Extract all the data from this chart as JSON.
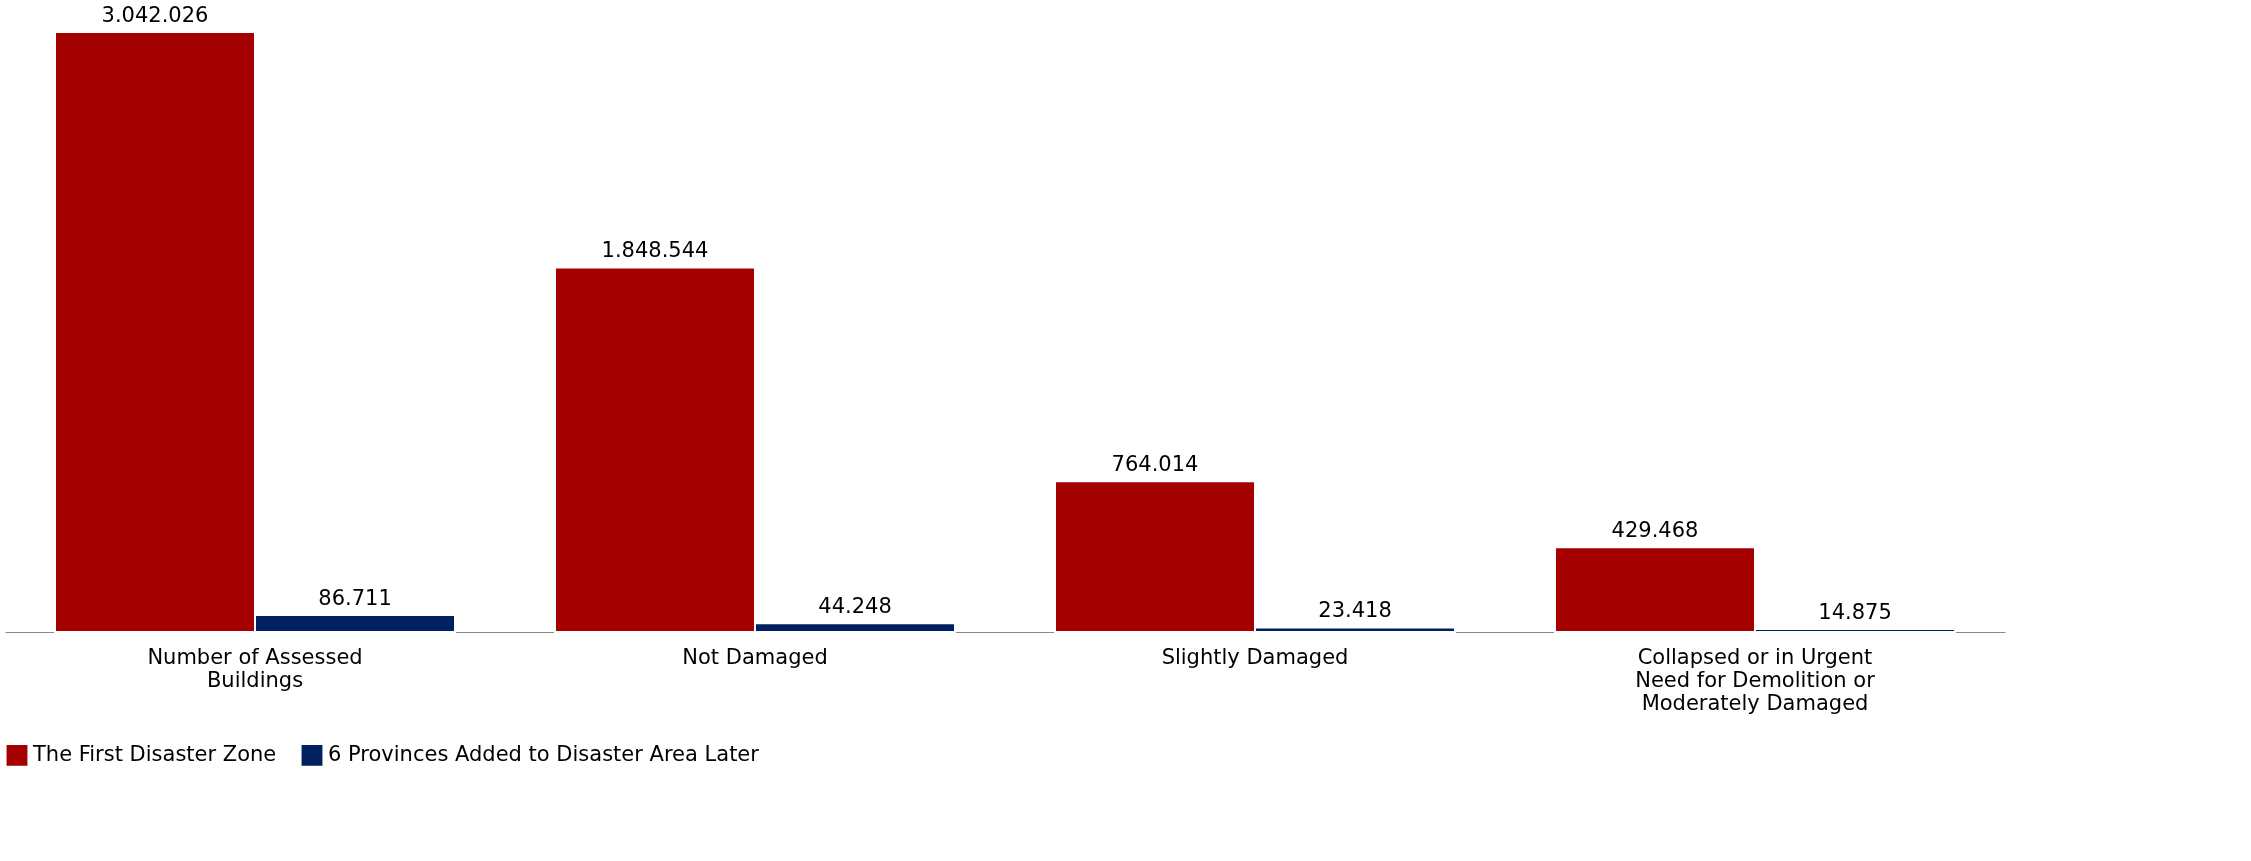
{
  "chart_data": {
    "type": "bar",
    "categories": [
      "Number of Assessed Buildings",
      "Not Damaged",
      "Slightly Damaged",
      "Collapsed or in Urgent Need for Demolition or Moderately Damaged"
    ],
    "tick_labels": "x",
    "legend": "bottom",
    "series": [
      {
        "name": "The First Disaster Zone",
        "color": "#a50000",
        "values": [
          3042026,
          1848544,
          764014,
          429468
        ],
        "value_labels": [
          "3.042.026",
          "1.848.544",
          "764.014",
          "429.468"
        ]
      },
      {
        "name": "6 Provinces Added to Disaster Area Later",
        "color": "#002060",
        "values": [
          86711,
          44248,
          23418,
          14875
        ],
        "value_labels": [
          "86.711",
          "44.248",
          "23.418",
          "14.875"
        ]
      }
    ]
  }
}
